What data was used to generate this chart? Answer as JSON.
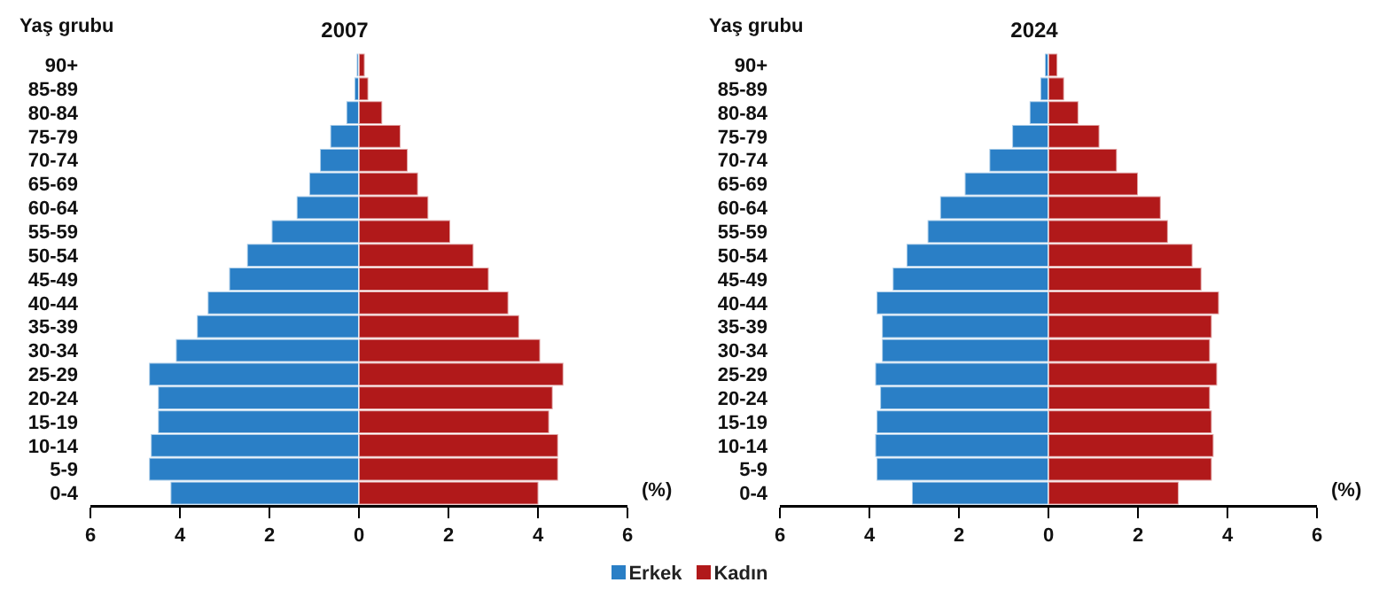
{
  "chart_data": [
    {
      "type": "bar",
      "orientation": "horizontal",
      "stacked": true,
      "title": "2007",
      "ylabel": "Yaş grubu",
      "xlabel": "(%)",
      "legend": "bottom",
      "grid": false,
      "categories": [
        "90+",
        "85-89",
        "80-84",
        "75-79",
        "70-74",
        "65-69",
        "60-64",
        "55-59",
        "50-54",
        "45-49",
        "40-44",
        "35-39",
        "30-34",
        "25-29",
        "20-24",
        "15-19",
        "10-14",
        "5-9",
        "0-4"
      ],
      "xlim": [
        -6,
        6
      ],
      "xticks": [
        {
          "value": -6,
          "label": "6"
        },
        {
          "value": -4,
          "label": "4"
        },
        {
          "value": -2,
          "label": "2"
        },
        0,
        2,
        4,
        6
      ],
      "series": [
        {
          "name": "Erkek",
          "color": "#2a7fc6",
          "values": [
            -0.05,
            -0.1,
            -0.28,
            -0.64,
            -0.87,
            -1.11,
            -1.39,
            -1.95,
            -2.5,
            -2.9,
            -3.38,
            -3.62,
            -4.09,
            -4.69,
            -4.49,
            -4.49,
            -4.65,
            -4.69,
            -4.21
          ]
        },
        {
          "name": "Kadın",
          "color": "#b1191a",
          "values": [
            0.13,
            0.21,
            0.52,
            0.93,
            1.09,
            1.32,
            1.55,
            2.04,
            2.56,
            2.9,
            3.34,
            3.58,
            4.05,
            4.57,
            4.33,
            4.25,
            4.45,
            4.45,
            4.01
          ]
        }
      ]
    },
    {
      "type": "bar",
      "orientation": "horizontal",
      "stacked": true,
      "title": "2024",
      "ylabel": "Yaş grubu",
      "xlabel": "(%)",
      "grid": false,
      "categories": [
        "90+",
        "85-89",
        "80-84",
        "75-79",
        "70-74",
        "65-69",
        "60-64",
        "55-59",
        "50-54",
        "45-49",
        "40-44",
        "35-39",
        "30-34",
        "25-29",
        "20-24",
        "15-19",
        "10-14",
        "5-9",
        "0-4"
      ],
      "xlim": [
        -6,
        6
      ],
      "xticks": [
        {
          "value": -6,
          "label": "6"
        },
        {
          "value": -4,
          "label": "4"
        },
        {
          "value": -2,
          "label": "2"
        },
        0,
        2,
        4,
        6
      ],
      "series": [
        {
          "color": "#2a7fc6",
          "values": [
            -0.08,
            -0.18,
            -0.42,
            -0.81,
            -1.32,
            -1.87,
            -2.42,
            -2.7,
            -3.17,
            -3.48,
            -3.84,
            -3.72,
            -3.72,
            -3.87,
            -3.76,
            -3.84,
            -3.87,
            -3.84,
            -3.05
          ]
        },
        {
          "color": "#b1191a",
          "values": [
            0.2,
            0.35,
            0.67,
            1.14,
            1.53,
            2.0,
            2.51,
            2.67,
            3.22,
            3.42,
            3.81,
            3.65,
            3.61,
            3.77,
            3.61,
            3.65,
            3.69,
            3.65,
            2.91
          ]
        }
      ]
    }
  ]
}
